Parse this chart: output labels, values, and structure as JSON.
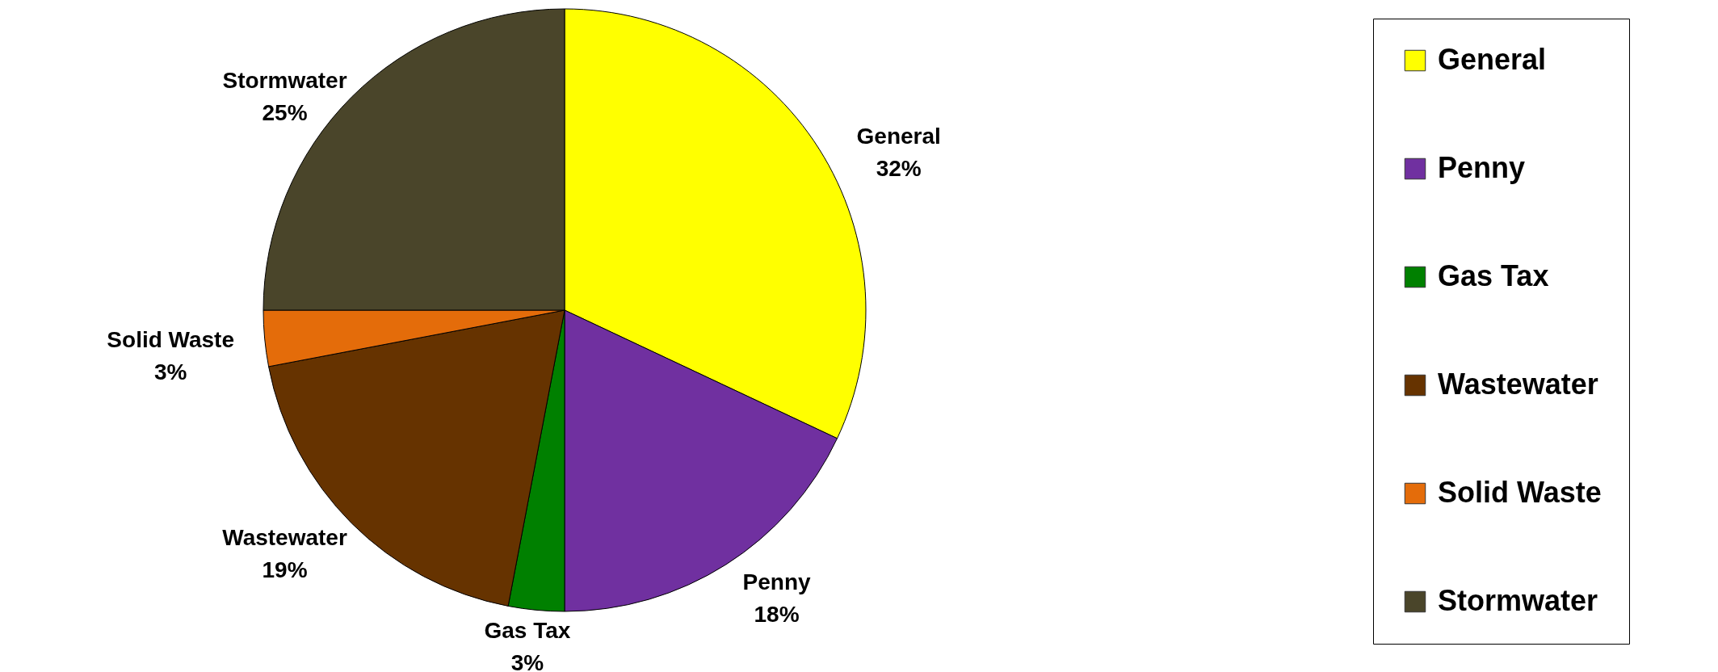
{
  "chart_data": {
    "type": "pie",
    "categories": [
      "General",
      "Penny",
      "Gas Tax",
      "Wastewater",
      "Solid Waste",
      "Stormwater"
    ],
    "values": [
      32,
      18,
      3,
      19,
      3,
      25
    ],
    "value_labels": [
      "32%",
      "18%",
      "3%",
      "19%",
      "3%",
      "25%"
    ],
    "colors": [
      "#ffff00",
      "#7030a0",
      "#008000",
      "#663300",
      "#e46c0a",
      "#4a452a"
    ],
    "legend": "right"
  }
}
